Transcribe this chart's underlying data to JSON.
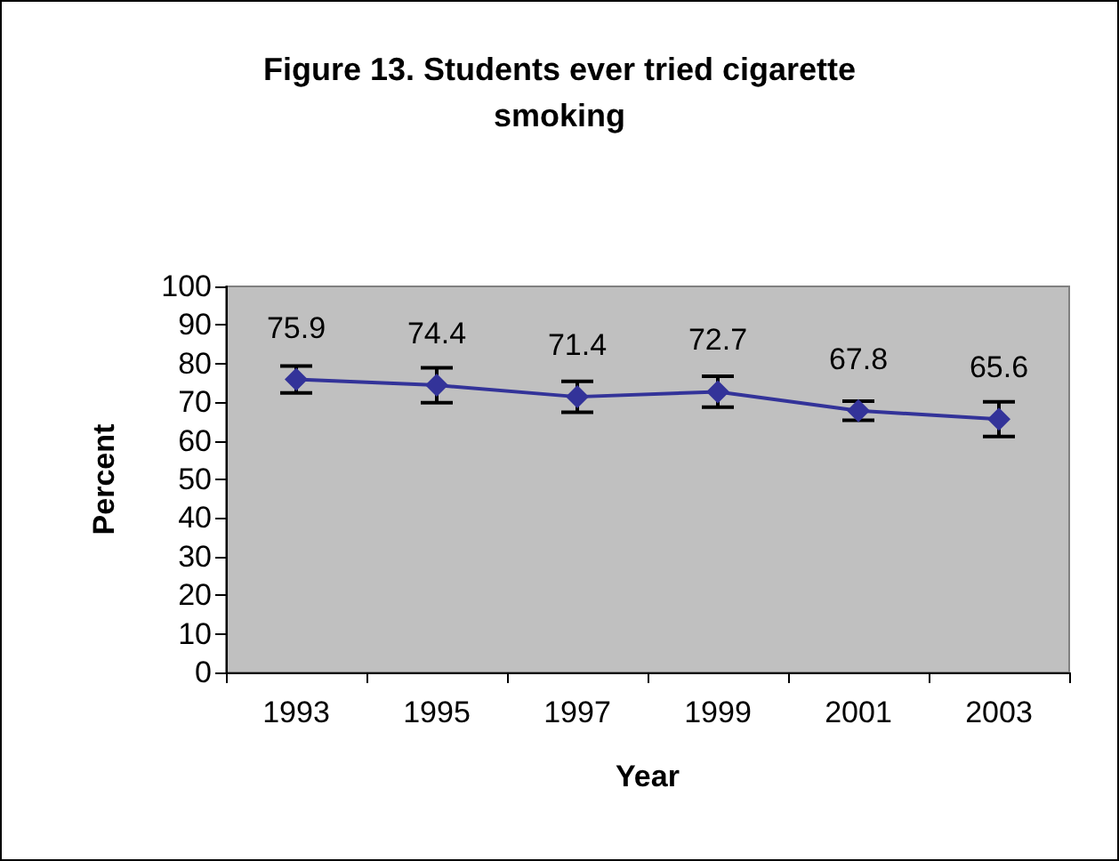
{
  "chart_data": {
    "type": "line",
    "title": "Figure 13. Students ever tried cigarette\nsmoking",
    "xlabel": "Year",
    "ylabel": "Percent",
    "categories": [
      "1993",
      "1995",
      "1997",
      "1999",
      "2001",
      "2003"
    ],
    "series": [
      {
        "color": "#333399",
        "values": [
          75.9,
          74.4,
          71.4,
          72.7,
          67.8,
          65.6
        ],
        "errors": [
          3.5,
          4.5,
          4,
          4,
          2.5,
          4.5
        ]
      }
    ],
    "ylim": [
      0,
      100
    ],
    "yticks": [
      0,
      10,
      20,
      30,
      40,
      50,
      60,
      70,
      80,
      90,
      100
    ],
    "grid": false,
    "marker": "diamond",
    "line_style": "solid",
    "data_labels": true
  }
}
